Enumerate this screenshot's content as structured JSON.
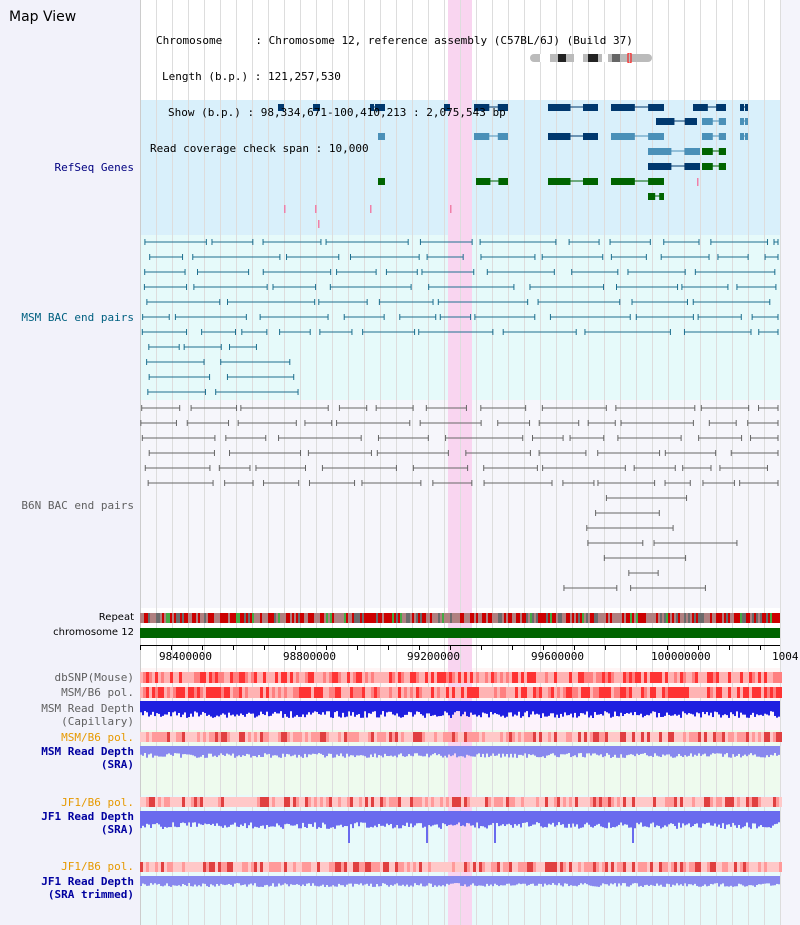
{
  "view": {
    "title": "Map View"
  },
  "info": {
    "chromosome_label": "Chromosome",
    "chromosome_value": "Chromosome 12, reference assembly (C57BL/6J) (Build 37)",
    "length_label": "Length (b.p.)",
    "length_value": "121,257,530",
    "show_label": "Show (b.p.)",
    "show_value": "98,334,671-100,410,213 : 2,075,543 bp",
    "coverage_label": "Read coverage check span",
    "coverage_value": "10,000"
  },
  "tracks": {
    "refseq": "RefSeq Genes",
    "msm_bac": "MSM BAC end pairs",
    "b6n_bac": "B6N BAC end pairs",
    "repeat": "Repeat",
    "chromosome": "chromosome 12",
    "dbsnp": "dbSNP(Mouse)",
    "msm_b6_pol": "MSM/B6 pol.",
    "msm_depth_cap_1": "MSM Read Depth",
    "msm_depth_cap_2": "(Capillary)",
    "msm_b6_pol_2": "MSM/B6 pol.",
    "msm_depth_sra_1": "MSM Read Depth",
    "msm_depth_sra_2": "(SRA)",
    "jf1_b6_pol": "JF1/B6 pol.",
    "jf1_depth_sra_1": "JF1 Read Depth",
    "jf1_depth_sra_2": "(SRA)",
    "jf1_b6_pol_2": "JF1/B6 pol.",
    "jf1_depth_trim_1": "JF1 Read Depth",
    "jf1_depth_trim_2": "(SRA trimmed)"
  },
  "axis": {
    "ticks": [
      "98400000",
      "98800000",
      "99200000",
      "99600000",
      "100000000",
      "1004"
    ]
  },
  "colors": {
    "refseq_bg": "#d9f0fb",
    "msm_bac_bg": "#e6fafa",
    "b6n_bac_bg": "#f6f6fb",
    "highlight": "#f9d5f0",
    "chromosome_bar": "#006400",
    "gene_navy": "#00386e",
    "gene_steel": "#4a90b8",
    "gene_green": "#006400",
    "msm_bac": "#1d6f8f",
    "b6n_bac": "#666666",
    "depth_blue": "#1f1fe0",
    "depth_light": "#8888ee"
  }
}
